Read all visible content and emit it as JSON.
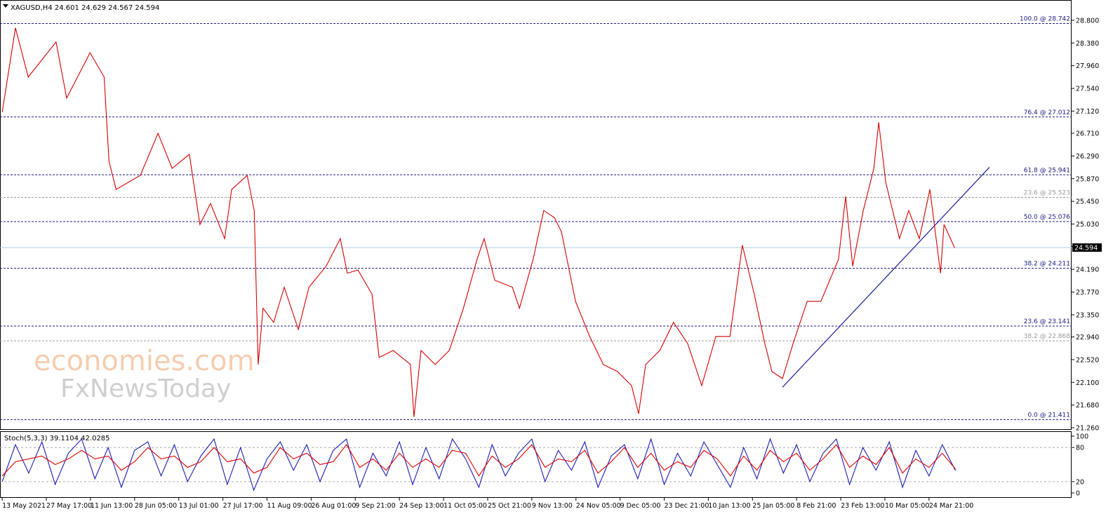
{
  "chart_data": [
    {
      "type": "line",
      "title": "XAGUSD,H4  24.601 24.629 24.567 24.594",
      "xlim": [
        -0.05,
        24.23
      ],
      "ylim": [
        21.221,
        29.176
      ],
      "xticks": [
        {
          "value": 0,
          "label": "13 May 2021"
        },
        {
          "value": 1,
          "label": "27 May 17:00"
        },
        {
          "value": 2,
          "label": "11 Jun 13:00"
        },
        {
          "value": 3,
          "label": "28 Jun 05:00"
        },
        {
          "value": 4,
          "label": "13 Jul 01:00"
        },
        {
          "value": 5,
          "label": "27 Jul 17:00"
        },
        {
          "value": 6,
          "label": "11 Aug 09:00"
        },
        {
          "value": 7,
          "label": "26 Aug 01:00"
        },
        {
          "value": 8,
          "label": "9 Sep 21:00"
        },
        {
          "value": 9,
          "label": "24 Sep 13:00"
        },
        {
          "value": 10,
          "label": "11 Oct 05:00"
        },
        {
          "value": 11,
          "label": "25 Oct 21:00"
        },
        {
          "value": 12,
          "label": "9 Nov 13:00"
        },
        {
          "value": 13,
          "label": "24 Nov 05:00"
        },
        {
          "value": 14,
          "label": "9 Dec 05:00"
        },
        {
          "value": 15,
          "label": "23 Dec 21:00"
        },
        {
          "value": 16,
          "label": "10 Jan 13:00"
        },
        {
          "value": 17,
          "label": "25 Jan 05:00"
        },
        {
          "value": 18,
          "label": "8 Feb 21:00"
        },
        {
          "value": 19,
          "label": "23 Feb 13:00"
        },
        {
          "value": 20,
          "label": "10 Mar 05:00"
        },
        {
          "value": 21,
          "label": "24 Mar 21:00"
        }
      ],
      "yticks": [
        {
          "value": 28.8,
          "label": "28.800"
        },
        {
          "value": 28.38,
          "label": "28.380"
        },
        {
          "value": 27.96,
          "label": "27.960"
        },
        {
          "value": 27.54,
          "label": "27.540"
        },
        {
          "value": 27.12,
          "label": "27.120"
        },
        {
          "value": 26.71,
          "label": "26.710"
        },
        {
          "value": 26.29,
          "label": "26.290"
        },
        {
          "value": 25.87,
          "label": "25.870"
        },
        {
          "value": 25.45,
          "label": "25.450"
        },
        {
          "value": 25.03,
          "label": "25.030"
        },
        {
          "value": 24.61,
          "label": "24.610"
        },
        {
          "value": 24.19,
          "label": "24.190"
        },
        {
          "value": 23.77,
          "label": "23.770"
        },
        {
          "value": 23.35,
          "label": "23.350"
        },
        {
          "value": 22.94,
          "label": "22.940"
        },
        {
          "value": 22.52,
          "label": "22.520"
        },
        {
          "value": 22.1,
          "label": "22.100"
        },
        {
          "value": 21.68,
          "label": "21.680"
        },
        {
          "value": 21.26,
          "label": "21.260"
        }
      ],
      "series": [
        {
          "color": "#d40000",
          "x": [
            0,
            0.3,
            0.59,
            1.22,
            1.46,
            1.99,
            2.31,
            2.42,
            2.58,
            3.13,
            3.53,
            3.85,
            4.24,
            4.48,
            4.72,
            5.04,
            5.2,
            5.55,
            5.71,
            5.8,
            5.91,
            6.15,
            6.39,
            6.71,
            6.95,
            7.34,
            7.66,
            7.82,
            8.06,
            8.38,
            8.54,
            8.86,
            9.25,
            9.33,
            9.49,
            9.81,
            10.13,
            10.45,
            10.76,
            10.92,
            11.16,
            11.56,
            11.72,
            12.03,
            12.27,
            12.51,
            12.67,
            12.99,
            13.31,
            13.62,
            13.94,
            14.26,
            14.42,
            14.58,
            14.9,
            15.21,
            15.53,
            15.85,
            16.17,
            16.49,
            16.77,
            17.04,
            17.28,
            17.44,
            17.68,
            17.92,
            18.24,
            18.55,
            18.95,
            19.11,
            19.27,
            19.51,
            19.75,
            19.86,
            20.02,
            20.33,
            20.54,
            20.78,
            21.02,
            21.26,
            21.34,
            21.58
          ],
          "values": [
            27.1,
            28.66,
            27.75,
            28.4,
            27.36,
            28.2,
            27.75,
            26.19,
            25.67,
            25.93,
            26.71,
            26.06,
            26.32,
            25.02,
            25.41,
            24.76,
            25.67,
            25.93,
            25.28,
            22.43,
            23.47,
            23.21,
            23.86,
            23.08,
            23.86,
            24.25,
            24.76,
            24.12,
            24.18,
            23.73,
            22.56,
            22.69,
            22.43,
            21.46,
            22.69,
            22.43,
            22.69,
            23.47,
            24.38,
            24.76,
            23.99,
            23.86,
            23.47,
            24.38,
            25.28,
            25.15,
            24.89,
            23.6,
            22.95,
            22.43,
            22.3,
            22.04,
            21.52,
            22.43,
            22.69,
            23.21,
            22.82,
            22.04,
            22.95,
            22.95,
            24.64,
            23.73,
            22.82,
            22.3,
            22.17,
            22.82,
            23.6,
            23.6,
            24.38,
            25.54,
            24.25,
            25.28,
            26.06,
            26.91,
            25.8,
            24.76,
            25.28,
            24.76,
            25.67,
            24.12,
            25.02,
            24.59
          ]
        }
      ],
      "levels": [
        {
          "value": 28.742,
          "label": "100.0 @ 28.742",
          "color": "#1a1a80"
        },
        {
          "value": 27.012,
          "label": "76.4 @ 27.012",
          "color": "#1a1a80"
        },
        {
          "value": 25.941,
          "label": "61.8 @ 25.941",
          "color": "#1a1a80"
        },
        {
          "value": 25.523,
          "label": "23.6 @ 25.523",
          "color": "#9a9a9a"
        },
        {
          "value": 25.076,
          "label": "50.0 @ 25.076",
          "color": "#1a1a80"
        },
        {
          "value": 24.211,
          "label": "38.2 @ 24.211",
          "color": "#1a1a80"
        },
        {
          "value": 23.141,
          "label": "23.6 @ 23.141",
          "color": "#1a1a80"
        },
        {
          "value": 22.868,
          "label": "38.2 @ 22.868",
          "color": "#9a9a9a"
        },
        {
          "value": 21.411,
          "label": "0.0 @ 21.411",
          "color": "#1a1a80"
        }
      ],
      "current": {
        "value": 24.594,
        "label": "24.594",
        "color": "#a9cde6"
      },
      "trendline": {
        "x": [
          17.68,
          22.37
        ],
        "values": [
          22.01,
          26.08
        ],
        "color": "#1a1a9a"
      },
      "watermark": [
        "economies.com",
        "FxNewsToday"
      ]
    },
    {
      "type": "line",
      "title": "Stoch(5,3,3) 39.1104 42.0285",
      "xlim": [
        -0.05,
        24.23
      ],
      "ylim": [
        -8.6,
        107.4
      ],
      "yticks": [
        0,
        20,
        80,
        100
      ],
      "levels": [
        20,
        80
      ],
      "series": [
        {
          "color": "#1c1cb4",
          "x": [
            0,
            0.3,
            0.6,
            0.9,
            1.2,
            1.5,
            1.8,
            2.1,
            2.4,
            2.7,
            3,
            3.3,
            3.6,
            3.9,
            4.2,
            4.5,
            4.8,
            5.1,
            5.4,
            5.7,
            6,
            6.3,
            6.6,
            6.9,
            7.2,
            7.5,
            7.8,
            8.1,
            8.4,
            8.7,
            9,
            9.3,
            9.6,
            9.9,
            10.2,
            10.5,
            10.8,
            11.1,
            11.4,
            11.7,
            12,
            12.3,
            12.6,
            12.9,
            13.2,
            13.5,
            13.8,
            14.1,
            14.4,
            14.7,
            15,
            15.3,
            15.6,
            15.9,
            16.2,
            16.5,
            16.8,
            17.1,
            17.4,
            17.7,
            18,
            18.3,
            18.6,
            18.9,
            19.2,
            19.5,
            19.8,
            20.1,
            20.4,
            20.7,
            21,
            21.3,
            21.6
          ],
          "values": [
            20,
            85,
            35,
            90,
            15,
            70,
            95,
            25,
            80,
            10,
            75,
            90,
            30,
            85,
            20,
            65,
            95,
            15,
            80,
            5,
            60,
            90,
            40,
            85,
            20,
            75,
            95,
            10,
            70,
            30,
            90,
            15,
            80,
            25,
            95,
            60,
            10,
            85,
            30,
            70,
            95,
            20,
            75,
            40,
            90,
            10,
            65,
            85,
            25,
            95,
            15,
            70,
            30,
            90,
            50,
            10,
            80,
            25,
            95,
            35,
            85,
            20,
            70,
            95,
            15,
            80,
            40,
            90,
            10,
            75,
            30,
            85,
            39.1104
          ]
        },
        {
          "color": "#e00000",
          "x": [
            0,
            0.3,
            0.6,
            0.9,
            1.2,
            1.5,
            1.8,
            2.1,
            2.4,
            2.7,
            3,
            3.3,
            3.6,
            3.9,
            4.2,
            4.5,
            4.8,
            5.1,
            5.4,
            5.7,
            6,
            6.3,
            6.6,
            6.9,
            7.2,
            7.5,
            7.8,
            8.1,
            8.4,
            8.7,
            9,
            9.3,
            9.6,
            9.9,
            10.2,
            10.5,
            10.8,
            11.1,
            11.4,
            11.7,
            12,
            12.3,
            12.6,
            12.9,
            13.2,
            13.5,
            13.8,
            14.1,
            14.4,
            14.7,
            15,
            15.3,
            15.6,
            15.9,
            16.2,
            16.5,
            16.8,
            17.1,
            17.4,
            17.7,
            18,
            18.3,
            18.6,
            18.9,
            19.2,
            19.5,
            19.8,
            20.1,
            20.4,
            20.7,
            21,
            21.3,
            21.6
          ],
          "values": [
            30,
            55,
            60,
            65,
            50,
            60,
            75,
            60,
            65,
            40,
            55,
            80,
            60,
            65,
            45,
            55,
            80,
            55,
            60,
            35,
            45,
            80,
            60,
            70,
            50,
            55,
            85,
            45,
            60,
            40,
            70,
            45,
            60,
            45,
            75,
            70,
            30,
            65,
            45,
            60,
            85,
            45,
            60,
            55,
            75,
            35,
            55,
            80,
            45,
            70,
            40,
            55,
            45,
            75,
            60,
            30,
            65,
            40,
            75,
            55,
            70,
            40,
            60,
            85,
            45,
            65,
            50,
            80,
            35,
            60,
            45,
            70,
            42.0285
          ]
        }
      ]
    }
  ]
}
